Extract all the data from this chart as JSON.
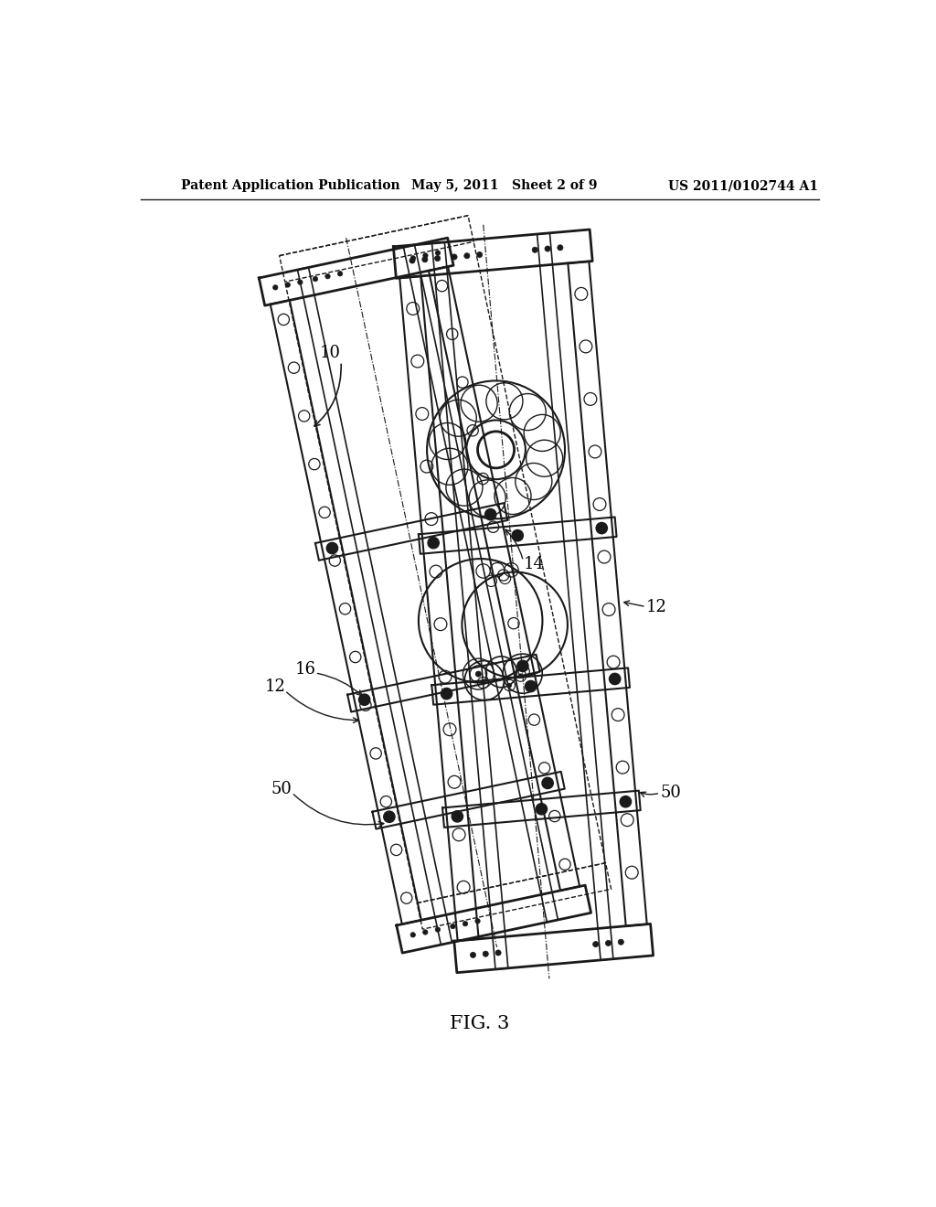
{
  "title_left": "Patent Application Publication",
  "title_mid": "May 5, 2011   Sheet 2 of 9",
  "title_right": "US 2011/0102744 A1",
  "fig_label": "FIG. 3",
  "bg_color": "#ffffff",
  "line_color": "#1a1a1a",
  "label_10": "10",
  "label_12a": "12",
  "label_12b": "12",
  "label_14": "14",
  "label_16": "16",
  "label_50a": "50",
  "label_50b": "50"
}
